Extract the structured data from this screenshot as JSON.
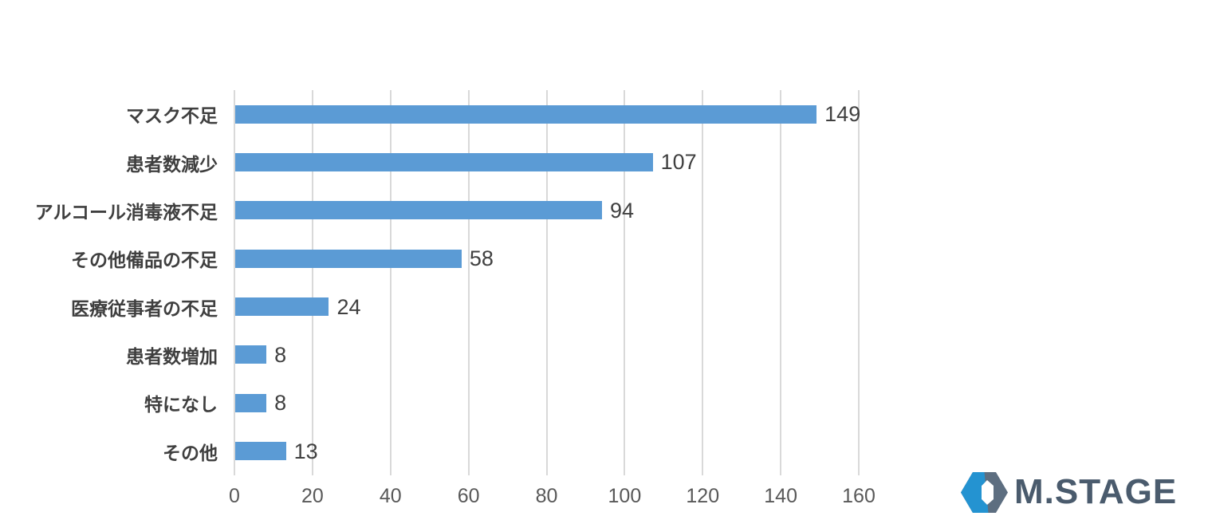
{
  "chart_data": {
    "type": "bar",
    "orientation": "horizontal",
    "title": "",
    "categories": [
      "マスク不足",
      "患者数減少",
      "アルコール消毒液不足",
      "その他備品の不足",
      "医療従事者の不足",
      "患者数増加",
      "特になし",
      "その他"
    ],
    "values": [
      149,
      107,
      94,
      58,
      24,
      8,
      8,
      13
    ],
    "data_labels": [
      "149",
      "107",
      "94",
      "58",
      "24",
      "8",
      "8",
      "13"
    ],
    "xlabel": "",
    "ylabel": "",
    "xlim": [
      0,
      160
    ],
    "x_ticks": [
      "0",
      "20",
      "40",
      "60",
      "80",
      "100",
      "120",
      "140",
      "160"
    ],
    "grid": true,
    "legend": false,
    "bar_color": "#5b9bd5",
    "gridline_color": "#d9d9d9",
    "category_label_color": "#3f3f3f",
    "value_label_color": "#404040",
    "tick_label_color": "#595959"
  },
  "logo": {
    "text": "M.STAGE",
    "icon": "hexagon-ring-icon",
    "icon_blue": "#2493d1",
    "icon_slate": "#5d6e80",
    "text_color": "#4a5b6d",
    "background": "#ffffff"
  }
}
